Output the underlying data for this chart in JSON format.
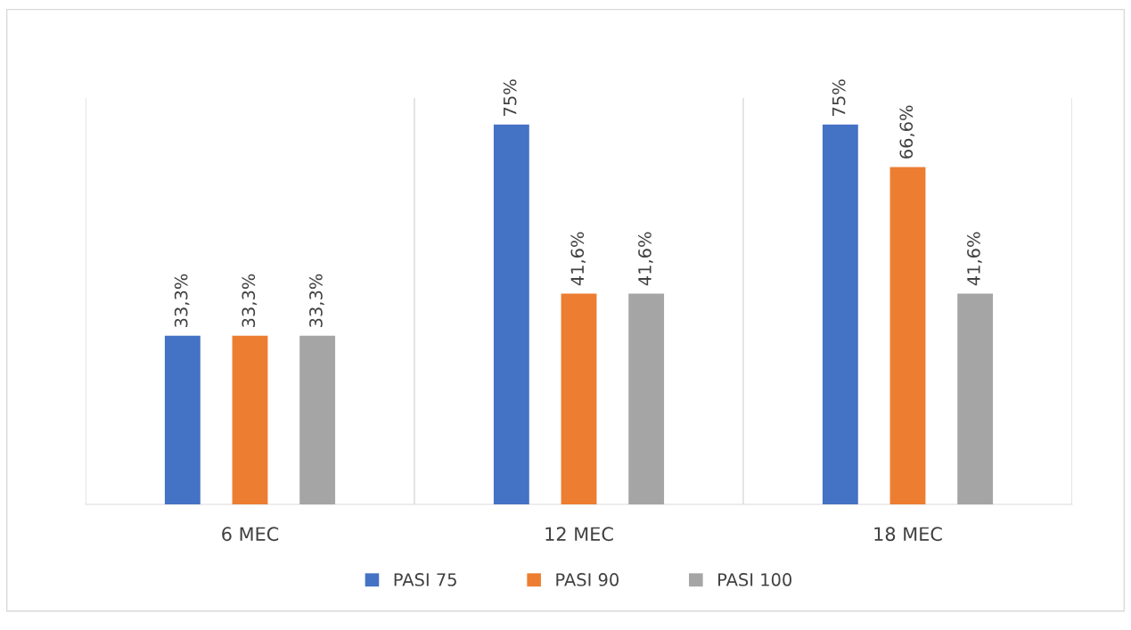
{
  "chart_data": {
    "type": "bar",
    "categories": [
      "6 MEC",
      "12 MEC",
      "18 MEC"
    ],
    "series": [
      {
        "name": "PASI 75",
        "color": "#4472c4",
        "values": [
          33.3,
          75,
          75
        ],
        "value_labels": [
          "33,3%",
          "75%",
          "75%"
        ]
      },
      {
        "name": "PASI 90",
        "color": "#ed7d31",
        "values": [
          33.3,
          41.6,
          66.6
        ],
        "value_labels": [
          "33,3%",
          "41,6%",
          "66,6%"
        ]
      },
      {
        "name": "PASI 100",
        "color": "#a5a5a5",
        "values": [
          33.3,
          41.6,
          41.6
        ],
        "value_labels": [
          "33,3%",
          "41,6%",
          "41,6%"
        ]
      }
    ],
    "grid": "x",
    "legend": "bottom"
  }
}
